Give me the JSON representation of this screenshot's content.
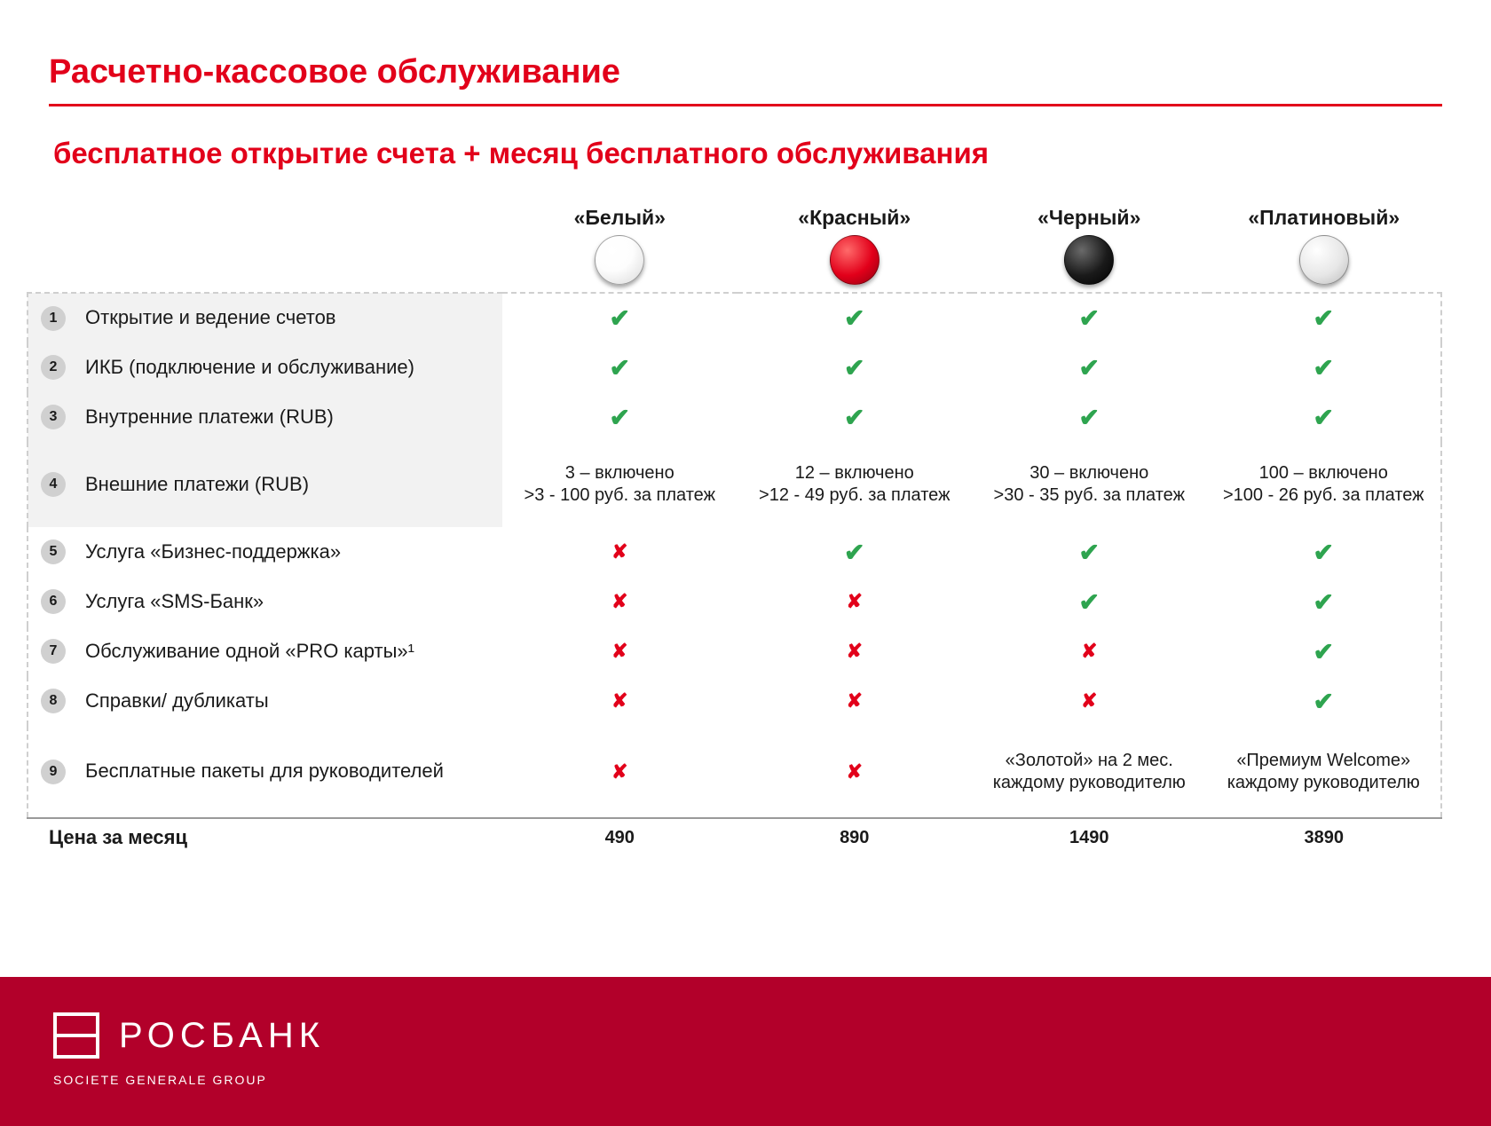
{
  "colors": {
    "accent": "#e2001a",
    "check": "#2ea44f",
    "cross": "#e2001a",
    "footer_bg": "#b2002a",
    "row_shade": "#f2f2f2",
    "dashed": "#cfcfcf",
    "text": "#1a1a1a"
  },
  "title": "Расчетно-кассовое обслуживание",
  "subtitle": "бесплатное открытие счета + месяц бесплатного обслуживания",
  "plans": [
    {
      "name": "«Белый»",
      "sphere": "white"
    },
    {
      "name": "«Красный»",
      "sphere": "red"
    },
    {
      "name": "«Черный»",
      "sphere": "black"
    },
    {
      "name": "«Платиновый»",
      "sphere": "plat"
    }
  ],
  "rows": [
    {
      "n": "1",
      "label": "Открытие и ведение счетов",
      "cells": [
        {
          "t": "check"
        },
        {
          "t": "check"
        },
        {
          "t": "check"
        },
        {
          "t": "check"
        }
      ],
      "shaded": true
    },
    {
      "n": "2",
      "label": "ИКБ (подключение и обслуживание)",
      "cells": [
        {
          "t": "check"
        },
        {
          "t": "check"
        },
        {
          "t": "check"
        },
        {
          "t": "check"
        }
      ],
      "shaded": true
    },
    {
      "n": "3",
      "label": "Внутренние платежи (RUB)",
      "cells": [
        {
          "t": "check"
        },
        {
          "t": "check"
        },
        {
          "t": "check"
        },
        {
          "t": "check"
        }
      ],
      "shaded": true
    },
    {
      "n": "4",
      "label": "Внешние платежи (RUB)",
      "tall": true,
      "shaded": true,
      "cells": [
        {
          "t": "text",
          "v": "3 – включено\n>3 - 100 руб. за платеж"
        },
        {
          "t": "text",
          "v": "12 – включено\n>12 - 49 руб. за платеж"
        },
        {
          "t": "text",
          "v": "30 – включено\n>30 - 35 руб. за платеж"
        },
        {
          "t": "text",
          "v": "100 – включено\n>100 - 26 руб. за платеж"
        }
      ]
    },
    {
      "n": "5",
      "label": "Услуга «Бизнес-поддержка»",
      "cells": [
        {
          "t": "cross"
        },
        {
          "t": "check"
        },
        {
          "t": "check"
        },
        {
          "t": "check"
        }
      ]
    },
    {
      "n": "6",
      "label": "Услуга «SMS-Банк»",
      "cells": [
        {
          "t": "cross"
        },
        {
          "t": "cross"
        },
        {
          "t": "check"
        },
        {
          "t": "check"
        }
      ]
    },
    {
      "n": "7",
      "label": "Обслуживание одной «PRO карты»¹",
      "cells": [
        {
          "t": "cross"
        },
        {
          "t": "cross"
        },
        {
          "t": "cross"
        },
        {
          "t": "check"
        }
      ]
    },
    {
      "n": "8",
      "label": "Справки/ дубликаты",
      "cells": [
        {
          "t": "cross"
        },
        {
          "t": "cross"
        },
        {
          "t": "cross"
        },
        {
          "t": "check"
        }
      ]
    },
    {
      "n": "9",
      "label": "Бесплатные пакеты для руководителей",
      "tall": true,
      "cells": [
        {
          "t": "cross"
        },
        {
          "t": "cross"
        },
        {
          "t": "text",
          "v": "«Золотой» на 2 мес. каждому руководителю"
        },
        {
          "t": "text",
          "v": "«Премиум Welcome» каждому руководителю"
        }
      ]
    }
  ],
  "price_label": "Цена за месяц",
  "prices": [
    "490",
    "890",
    "1490",
    "3890"
  ],
  "brand": {
    "name": "РОСБАНК",
    "sub": "SOCIETE GENERALE GROUP"
  }
}
